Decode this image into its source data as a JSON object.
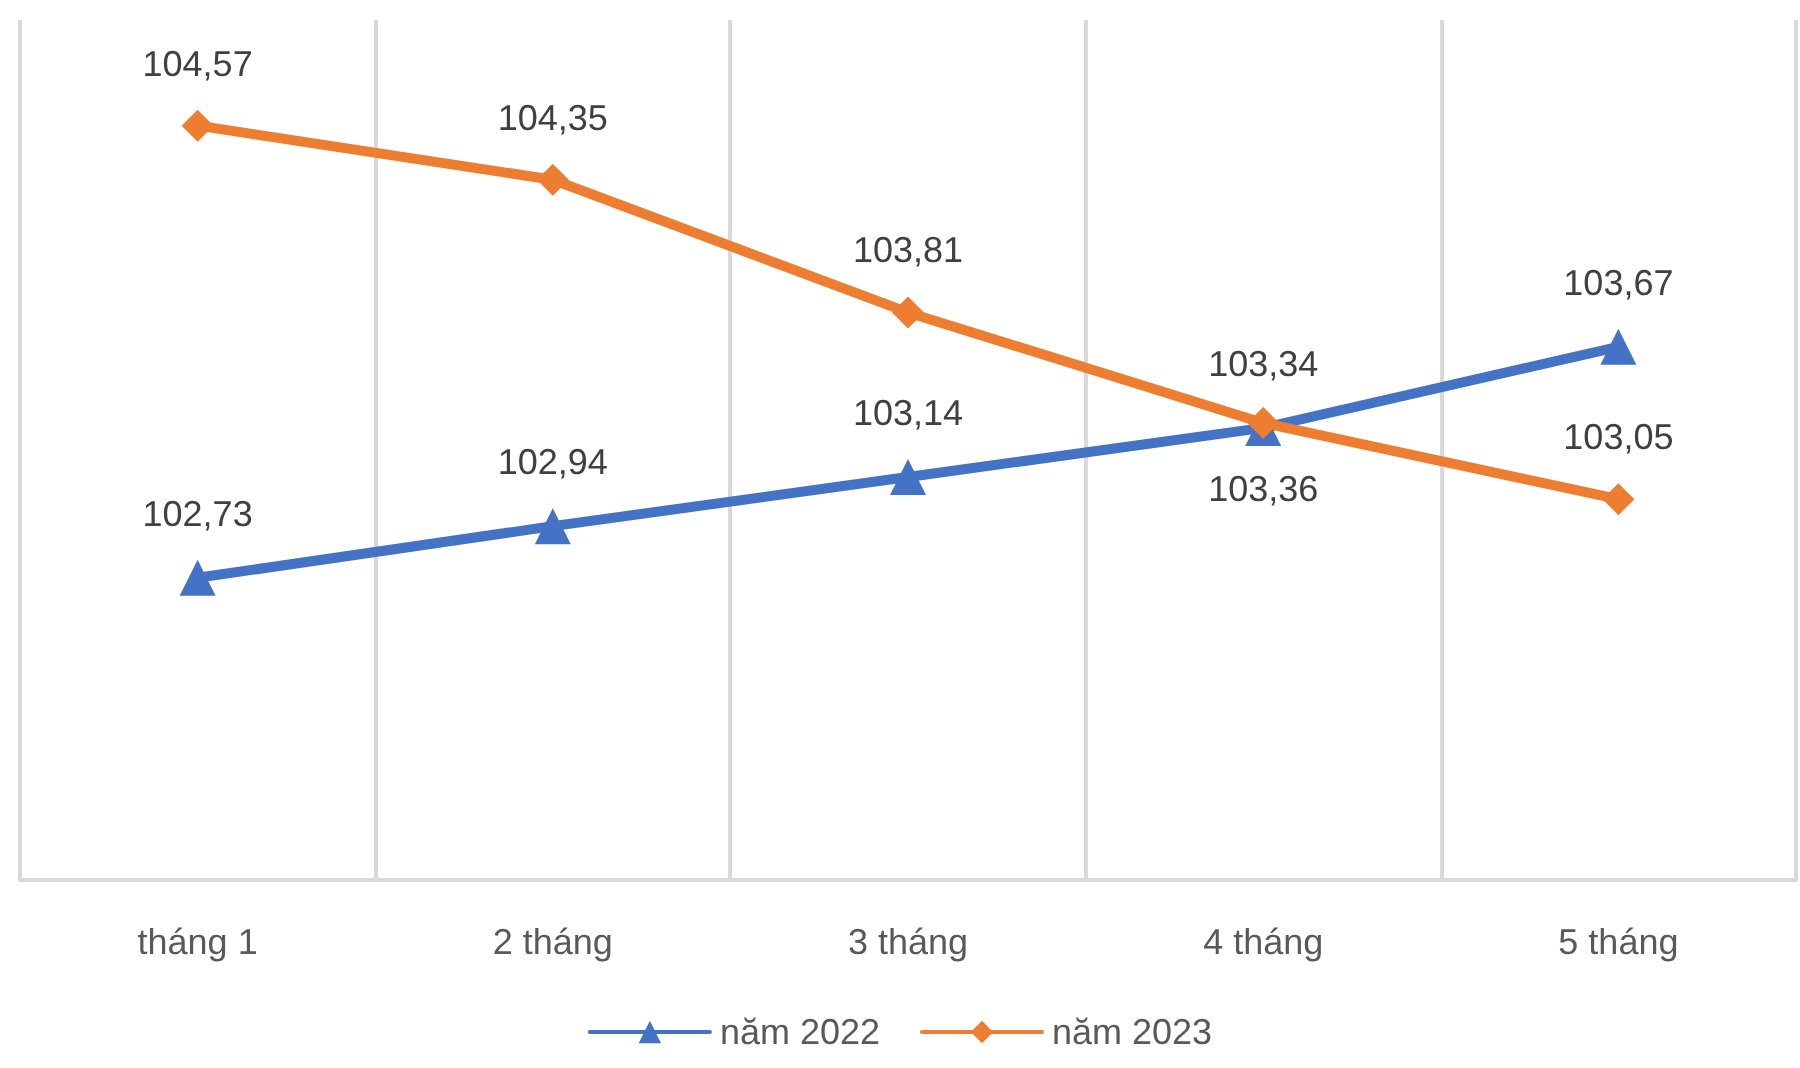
{
  "chart_data": {
    "type": "line",
    "categories": [
      "tháng 1",
      "2 tháng",
      "3 tháng",
      "4 tháng",
      "5 tháng"
    ],
    "series": [
      {
        "name": "năm 2022",
        "color": "#4472c4",
        "marker": "triangle",
        "values": [
          102.73,
          102.94,
          103.14,
          103.34,
          103.67
        ],
        "value_labels": [
          "102,73",
          "102,94",
          "103,14",
          "103,34",
          "103,67"
        ]
      },
      {
        "name": "năm 2023",
        "color": "#ed7d31",
        "marker": "diamond",
        "values": [
          104.57,
          104.35,
          103.81,
          103.36,
          103.05
        ],
        "value_labels": [
          "104,57",
          "104,35",
          "103,81",
          "103,36",
          "103,05"
        ]
      }
    ],
    "ylim": [
      101.5,
      105
    ],
    "tick_labels": "x",
    "grid": "x",
    "legend": "bottom",
    "line_style": "solid"
  }
}
